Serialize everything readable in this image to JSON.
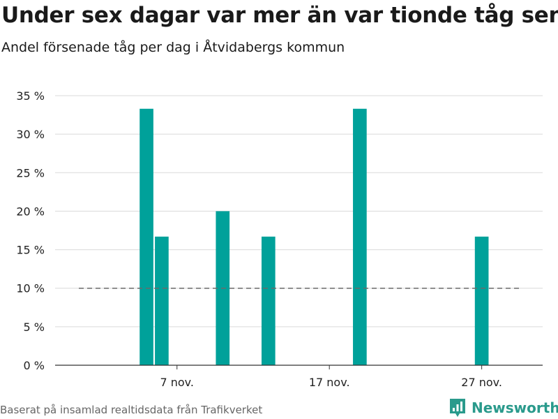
{
  "header": {
    "title": "Under sex dagar var mer än var tionde tåg sent",
    "subtitle": "Andel försenade tåg per dag i Åtvidabergs kommun"
  },
  "footer": {
    "source": "Baserat på insamlad realtidsdata från Trafikverket",
    "brand": "Newsworthy"
  },
  "colors": {
    "bar": "#00A19A",
    "reference_line": "#6a6a6a",
    "grid": "#d9d9d9",
    "axis": "#333333",
    "brand": "#2a9a8c"
  },
  "icons": {
    "brand_logo": "newsworthy-logo-icon"
  },
  "chart_data": {
    "type": "bar",
    "title": "Under sex dagar var mer än var tionde tåg sent",
    "subtitle": "Andel försenade tåg per dag i Åtvidabergs kommun",
    "xlabel": "",
    "ylabel": "",
    "ylim": [
      0,
      35
    ],
    "yticks": [
      0,
      5,
      10,
      15,
      20,
      25,
      30,
      35
    ],
    "ytick_labels": [
      "0 %",
      "5 %",
      "10 %",
      "15 %",
      "20 %",
      "25 %",
      "30 %",
      "35 %"
    ],
    "xlim": [
      "2020-10-30",
      "2020-12-01"
    ],
    "xticks": [
      "2020-11-07",
      "2020-11-17",
      "2020-11-27"
    ],
    "xtick_labels": [
      "7 nov.",
      "17 nov.",
      "27 nov."
    ],
    "grid": true,
    "unit": "%",
    "reference_line": {
      "value": 10
    },
    "series": [
      {
        "x": [
          "2020-11-05",
          "2020-11-06",
          "2020-11-10",
          "2020-11-13",
          "2020-11-19",
          "2020-11-27"
        ],
        "values": [
          33.3,
          16.7,
          20.0,
          16.7,
          33.3,
          16.7
        ]
      }
    ]
  }
}
